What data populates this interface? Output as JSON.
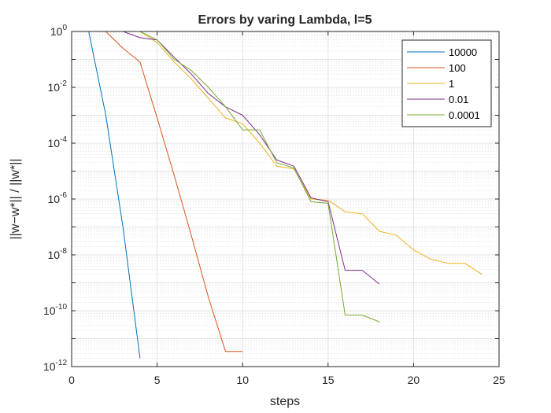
{
  "chart_data": {
    "type": "line",
    "title": "Errors by varing Lambda, l=5",
    "xlabel": "steps",
    "ylabel": "||w−w*|| / ||w*||",
    "xlim": [
      0,
      25
    ],
    "ylim": [
      1e-12,
      1
    ],
    "yscale": "log",
    "xticks": [
      0,
      5,
      10,
      15,
      20,
      25
    ],
    "yticks": [
      {
        "value": 1e-12,
        "base": "10",
        "exp": "-12"
      },
      {
        "value": 1e-10,
        "base": "10",
        "exp": "-10"
      },
      {
        "value": 1e-08,
        "base": "10",
        "exp": "-8"
      },
      {
        "value": 1e-06,
        "base": "10",
        "exp": "-6"
      },
      {
        "value": 0.0001,
        "base": "10",
        "exp": "-4"
      },
      {
        "value": 0.01,
        "base": "10",
        "exp": "-2"
      },
      {
        "value": 1,
        "base": "10",
        "exp": "0"
      }
    ],
    "grid": true,
    "minor_grid": true,
    "legend": "top-right",
    "series": [
      {
        "name": "10000",
        "color": "#0072BD",
        "x": [
          1,
          2,
          3,
          4
        ],
        "y": [
          1,
          0.001,
          1e-07,
          2e-12
        ]
      },
      {
        "name": "100",
        "color": "#D95319",
        "x": [
          1,
          2,
          3,
          4,
          5,
          6,
          7,
          8,
          9,
          10
        ],
        "y": [
          1,
          1,
          0.25,
          0.08,
          0.0008,
          7e-06,
          5e-08,
          3e-10,
          3.5e-12,
          3.5e-12
        ]
      },
      {
        "name": "1",
        "color": "#EDB120",
        "x": [
          1,
          2,
          3,
          4,
          5,
          6,
          7,
          8,
          9,
          10,
          11,
          12,
          13,
          14,
          15,
          16,
          17,
          18,
          19,
          20,
          21,
          22,
          23,
          24
        ],
        "y": [
          1,
          1,
          1,
          1,
          0.4,
          0.08,
          0.02,
          0.004,
          0.0008,
          0.0005,
          0.0001,
          1.5e-05,
          1.2e-05,
          1e-06,
          9e-07,
          3.5e-07,
          3e-07,
          7e-08,
          5e-08,
          1.5e-08,
          7e-09,
          5e-09,
          5e-09,
          2e-09
        ]
      },
      {
        "name": "0.01",
        "color": "#7E2F8E",
        "x": [
          1,
          2,
          3,
          4,
          5,
          6,
          7,
          8,
          9,
          10,
          11,
          12,
          13,
          14,
          15,
          16,
          17,
          18
        ],
        "y": [
          1,
          1,
          1,
          0.6,
          0.5,
          0.12,
          0.03,
          0.006,
          0.002,
          0.001,
          0.0002,
          2.5e-05,
          1.5e-05,
          1.1e-06,
          8e-07,
          2.8e-09,
          2.8e-09,
          9e-10
        ]
      },
      {
        "name": "0.0001",
        "color": "#77AC30",
        "x": [
          1,
          2,
          3,
          4,
          5,
          6,
          7,
          8,
          9,
          10,
          11,
          12,
          13,
          14,
          15,
          16,
          17,
          18
        ],
        "y": [
          1,
          1,
          1,
          1,
          0.5,
          0.1,
          0.04,
          0.01,
          0.002,
          0.0003,
          0.0003,
          2e-05,
          1.3e-05,
          8e-07,
          7e-07,
          7e-11,
          7e-11,
          4e-11
        ]
      }
    ]
  }
}
